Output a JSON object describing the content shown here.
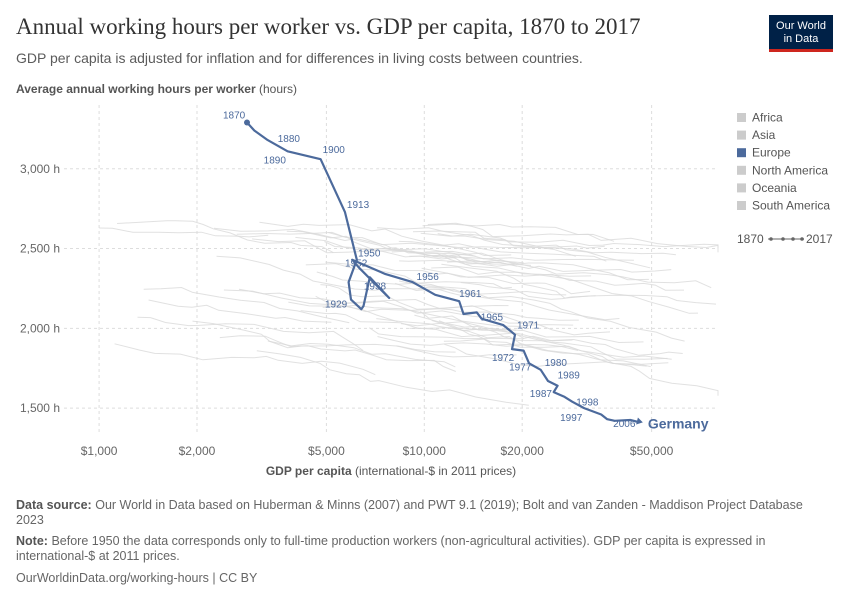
{
  "header": {
    "title": "Annual working hours per worker vs. GDP per capita, 1870 to 2017",
    "subtitle": "GDP per capita is adjusted for inflation and for differences in living costs between countries.",
    "logo_line1": "Our World",
    "logo_line2": "in Data"
  },
  "colors": {
    "highlight": "#4c6a9c",
    "background_lines": "#d9d9d9",
    "legend_gray": "#cccccc"
  },
  "legend": {
    "items": [
      {
        "label": "Africa",
        "color": "#cccccc"
      },
      {
        "label": "Asia",
        "color": "#cccccc"
      },
      {
        "label": "Europe",
        "color": "#4c6a9c"
      },
      {
        "label": "North America",
        "color": "#cccccc"
      },
      {
        "label": "Oceania",
        "color": "#cccccc"
      },
      {
        "label": "South America",
        "color": "#cccccc"
      }
    ],
    "time_start": "1870",
    "time_end": "2017"
  },
  "chart_data": {
    "type": "line",
    "title": "Annual working hours per worker vs. GDP per capita, 1870 to 2017",
    "ylabel_bold": "Average annual working hours per worker",
    "ylabel_rest": "(hours)",
    "xlabel_bold": "GDP per capita",
    "xlabel_rest": "(international-$ in 2011 prices)",
    "xscale": "log",
    "xlim": [
      780,
      80000
    ],
    "ylim": [
      1350,
      3400
    ],
    "x_ticks": [
      {
        "value": 1000,
        "label": "$1,000"
      },
      {
        "value": 2000,
        "label": "$2,000"
      },
      {
        "value": 5000,
        "label": "$5,000"
      },
      {
        "value": 10000,
        "label": "$10,000"
      },
      {
        "value": 20000,
        "label": "$20,000"
      },
      {
        "value": 50000,
        "label": "$50,000"
      }
    ],
    "y_ticks": [
      {
        "value": 1500,
        "label": "1,500 h"
      },
      {
        "value": 2000,
        "label": "2,000 h"
      },
      {
        "value": 2500,
        "label": "2,500 h"
      },
      {
        "value": 3000,
        "label": "3,000 h"
      }
    ],
    "grid": true,
    "highlighted_series": {
      "name": "Germany",
      "region": "Europe",
      "points": [
        {
          "x": 2850,
          "y": 3290,
          "year": "1870"
        },
        {
          "x": 3000,
          "y": 3240
        },
        {
          "x": 3300,
          "y": 3180,
          "year": "1880"
        },
        {
          "x": 3800,
          "y": 3110,
          "year": "1890"
        },
        {
          "x": 4800,
          "y": 3060,
          "year": "1900"
        },
        {
          "x": 5700,
          "y": 2730,
          "year": "1913"
        },
        {
          "x": 6200,
          "y": 2430
        },
        {
          "x": 5850,
          "y": 2290
        },
        {
          "x": 5950,
          "y": 2180,
          "year": "1929"
        },
        {
          "x": 6400,
          "y": 2120
        },
        {
          "x": 6500,
          "y": 2140
        },
        {
          "x": 6800,
          "y": 2320,
          "year": "1938"
        },
        {
          "x": 7800,
          "y": 2190
        },
        {
          "x": 6300,
          "y": 2380,
          "year": "1952"
        },
        {
          "x": 6000,
          "y": 2430,
          "year": "1950"
        },
        {
          "x": 7600,
          "y": 2340
        },
        {
          "x": 9200,
          "y": 2290,
          "year": "1956"
        },
        {
          "x": 10800,
          "y": 2210
        },
        {
          "x": 12800,
          "y": 2170,
          "year": "1961"
        },
        {
          "x": 13200,
          "y": 2090
        },
        {
          "x": 14500,
          "y": 2100,
          "year": "1965"
        },
        {
          "x": 15000,
          "y": 2060
        },
        {
          "x": 17500,
          "y": 2020
        },
        {
          "x": 19000,
          "y": 1960,
          "year": "1971"
        },
        {
          "x": 18600,
          "y": 1870,
          "year": "1972"
        },
        {
          "x": 20200,
          "y": 1860
        },
        {
          "x": 21000,
          "y": 1780,
          "year": "1977"
        },
        {
          "x": 22800,
          "y": 1740,
          "year": "1980"
        },
        {
          "x": 24000,
          "y": 1670
        },
        {
          "x": 25700,
          "y": 1640,
          "year": "1989"
        },
        {
          "x": 25000,
          "y": 1600,
          "year": "1987"
        },
        {
          "x": 27000,
          "y": 1570
        },
        {
          "x": 28500,
          "y": 1540,
          "year": "1998"
        },
        {
          "x": 31000,
          "y": 1500,
          "year": "1997"
        },
        {
          "x": 35000,
          "y": 1460
        },
        {
          "x": 36500,
          "y": 1430,
          "year": "2006"
        },
        {
          "x": 38500,
          "y": 1420
        },
        {
          "x": 43000,
          "y": 1425
        },
        {
          "x": 46000,
          "y": 1410
        }
      ]
    }
  },
  "footer": {
    "source_label": "Data source:",
    "source_text": "Our World in Data based on Huberman & Minns (2007) and PWT 9.1 (2019); Bolt and van Zanden - Maddison Project Database 2023",
    "note_label": "Note:",
    "note_text": "Before 1950 the data corresponds only to full-time production workers (non-agricultural activities). GDP per capita is expressed in international-$ at 2011 prices.",
    "url": "OurWorldinData.org/working-hours | CC BY"
  }
}
